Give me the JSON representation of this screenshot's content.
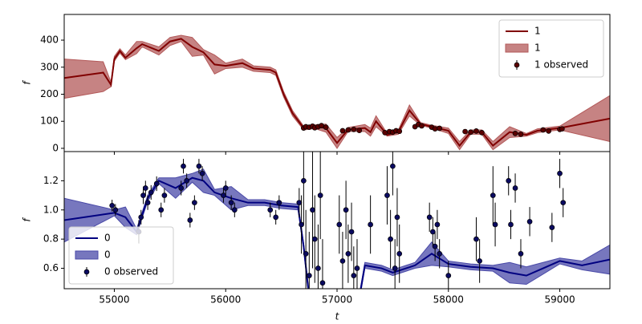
{
  "chart_data": [
    {
      "type": "line",
      "ylabel": "f",
      "legend": "upper right",
      "xlim": [
        54550,
        59450
      ],
      "ylim": [
        -12,
        495
      ],
      "yticks": [
        0,
        100,
        200,
        300,
        400
      ],
      "series": [
        {
          "name": "1",
          "kind": "line",
          "color": "#800000",
          "x": [
            54550,
            54900,
            54970,
            55000,
            55050,
            55100,
            55200,
            55250,
            55400,
            55500,
            55600,
            55700,
            55800,
            55900,
            56000,
            56150,
            56250,
            56400,
            56450,
            56520,
            56600,
            56700,
            56800,
            56900,
            57000,
            57100,
            57250,
            57300,
            57350,
            57450,
            57550,
            57650,
            57750,
            57850,
            58000,
            58100,
            58200,
            58300,
            58400,
            58550,
            58700,
            58800,
            59000,
            59450
          ],
          "values": [
            260,
            280,
            235,
            330,
            360,
            335,
            370,
            385,
            360,
            395,
            405,
            375,
            355,
            310,
            305,
            315,
            295,
            290,
            280,
            200,
            130,
            75,
            80,
            75,
            20,
            70,
            75,
            60,
            100,
            50,
            60,
            140,
            90,
            80,
            65,
            10,
            60,
            60,
            10,
            60,
            50,
            65,
            75,
            110
          ]
        },
        {
          "name": "1",
          "kind": "band",
          "color": "#b35959",
          "x": [
            54550,
            54900,
            54970,
            55000,
            55050,
            55100,
            55200,
            55250,
            55400,
            55500,
            55600,
            55700,
            55800,
            55900,
            56000,
            56150,
            56250,
            56400,
            56450,
            56520,
            56600,
            56700,
            56800,
            56900,
            57000,
            57100,
            57250,
            57300,
            57350,
            57450,
            57550,
            57650,
            57750,
            57850,
            58000,
            58100,
            58200,
            58300,
            58400,
            58550,
            58700,
            58800,
            59000,
            59450
          ],
          "lower": [
            185,
            210,
            228,
            322,
            352,
            328,
            350,
            375,
            345,
            380,
            395,
            340,
            345,
            275,
            295,
            300,
            285,
            280,
            270,
            190,
            120,
            68,
            73,
            60,
            0,
            63,
            62,
            45,
            80,
            45,
            52,
            120,
            85,
            75,
            55,
            -5,
            52,
            52,
            -5,
            40,
            45,
            58,
            68,
            25
          ],
          "upper": [
            330,
            320,
            245,
            340,
            368,
            345,
            395,
            395,
            375,
            410,
            418,
            410,
            365,
            345,
            315,
            330,
            305,
            300,
            290,
            210,
            140,
            82,
            87,
            90,
            40,
            77,
            88,
            75,
            120,
            55,
            68,
            160,
            95,
            85,
            75,
            25,
            68,
            68,
            25,
            80,
            55,
            72,
            82,
            195
          ]
        },
        {
          "name": "1 observed",
          "kind": "errorbar",
          "color": "#5a0000",
          "x": [
            56700,
            56720,
            56750,
            56780,
            56800,
            56830,
            56860,
            56900,
            57050,
            57100,
            57150,
            57200,
            57430,
            57470,
            57500,
            57530,
            57560,
            57700,
            57730,
            57760,
            57850,
            57880,
            57920,
            58150,
            58200,
            58250,
            58300,
            58600,
            58650,
            58850,
            58900,
            59000,
            59020
          ],
          "values": [
            75,
            80,
            78,
            82,
            76,
            80,
            84,
            78,
            65,
            68,
            70,
            66,
            58,
            62,
            60,
            65,
            63,
            80,
            88,
            83,
            78,
            72,
            74,
            62,
            60,
            64,
            58,
            55,
            52,
            68,
            64,
            70,
            72
          ],
          "errors": [
            8,
            8,
            8,
            8,
            8,
            8,
            8,
            8,
            6,
            6,
            6,
            6,
            6,
            6,
            6,
            6,
            6,
            6,
            6,
            6,
            6,
            6,
            6,
            6,
            6,
            6,
            6,
            6,
            6,
            6,
            6,
            6,
            6
          ]
        }
      ]
    },
    {
      "type": "line",
      "ylabel": "f",
      "xlabel": "t",
      "legend": "lower left",
      "xlim": [
        54550,
        59450
      ],
      "ylim": [
        0.46,
        1.4
      ],
      "xticks": [
        55000,
        56000,
        57000,
        58000,
        59000
      ],
      "yticks": [
        0.6,
        0.8,
        {
          "value": 1,
          "label": "1.0"
        },
        1.2
      ],
      "series": [
        {
          "name": "0",
          "kind": "line",
          "color": "#000080",
          "x": [
            54550,
            55000,
            55100,
            55200,
            55300,
            55400,
            55550,
            55700,
            55800,
            55900,
            56050,
            56200,
            56350,
            56500,
            56650,
            56700,
            56750,
            57200,
            57250,
            57400,
            57500,
            57700,
            57850,
            58000,
            58200,
            58400,
            58550,
            58700,
            58850,
            59000,
            59200,
            59450
          ],
          "values": [
            0.93,
            0.98,
            0.95,
            0.85,
            1.08,
            1.2,
            1.15,
            1.22,
            1.2,
            1.12,
            1.08,
            1.05,
            1.05,
            1.03,
            1.02,
            0.75,
            0.4,
            0.4,
            0.62,
            0.6,
            0.57,
            0.62,
            0.7,
            0.63,
            0.61,
            0.6,
            0.57,
            0.55,
            0.6,
            0.65,
            0.62,
            0.66
          ]
        },
        {
          "name": "0",
          "kind": "band",
          "color": "#4a4aa8",
          "x": [
            54550,
            55000,
            55100,
            55200,
            55300,
            55400,
            55550,
            55700,
            55800,
            55900,
            56050,
            56200,
            56350,
            56500,
            56650,
            56700,
            56750,
            57200,
            57250,
            57400,
            57500,
            57700,
            57850,
            58000,
            58200,
            58400,
            58550,
            58700,
            58850,
            59000,
            59200,
            59450
          ],
          "lower": [
            0.78,
            0.96,
            0.88,
            0.83,
            1.06,
            1.18,
            1.08,
            1.19,
            1.12,
            1.1,
            1.0,
            1.03,
            1.03,
            1.01,
            1.0,
            0.73,
            0.38,
            0.38,
            0.6,
            0.58,
            0.55,
            0.6,
            0.62,
            0.61,
            0.59,
            0.58,
            0.5,
            0.49,
            0.56,
            0.63,
            0.59,
            0.56
          ]
        },
        {
          "name": "0 observed",
          "kind": "errorbar",
          "color": "#0a0a60",
          "x": [
            54980,
            55010,
            55220,
            55240,
            55260,
            55280,
            55300,
            55330,
            55380,
            55420,
            55450,
            55600,
            55620,
            55650,
            55680,
            55720,
            55760,
            55790,
            55980,
            56000,
            56050,
            56080,
            56400,
            56450,
            56480,
            56660,
            56680,
            56700,
            56720,
            56750,
            56780,
            56800,
            56830,
            56850,
            56870,
            57020,
            57050,
            57080,
            57100,
            57130,
            57150,
            57180,
            57300,
            57450,
            57480,
            57500,
            57520,
            57540,
            57560,
            57830,
            57860,
            57880,
            57900,
            57920,
            58000,
            58250,
            58280,
            58400,
            58420,
            58540,
            58560,
            58600,
            58650,
            58730,
            58930,
            59000,
            59030
          ],
          "values": [
            1.03,
            1.0,
            0.85,
            0.95,
            1.1,
            1.15,
            1.05,
            1.12,
            1.18,
            1.0,
            1.1,
            1.15,
            1.3,
            1.2,
            0.93,
            1.05,
            1.3,
            1.25,
            1.1,
            1.15,
            1.05,
            1.0,
            1.0,
            0.95,
            1.05,
            1.05,
            0.9,
            1.2,
            0.7,
            0.55,
            1.0,
            0.8,
            0.6,
            1.1,
            0.5,
            0.9,
            0.65,
            1.0,
            0.7,
            0.85,
            0.55,
            0.6,
            0.9,
            1.1,
            0.8,
            1.3,
            0.6,
            0.95,
            0.7,
            0.95,
            0.85,
            0.75,
            0.9,
            0.7,
            0.55,
            0.8,
            0.65,
            1.1,
            0.9,
            1.2,
            0.9,
            1.15,
            0.7,
            0.92,
            0.88,
            1.25,
            1.05
          ],
          "errors": [
            0.04,
            0.04,
            0.08,
            0.05,
            0.06,
            0.05,
            0.05,
            0.05,
            0.05,
            0.05,
            0.05,
            0.05,
            0.05,
            0.05,
            0.05,
            0.05,
            0.05,
            0.05,
            0.05,
            0.05,
            0.05,
            0.05,
            0.05,
            0.05,
            0.05,
            0.1,
            0.2,
            0.3,
            0.3,
            0.3,
            0.4,
            0.3,
            0.3,
            0.3,
            0.3,
            0.2,
            0.2,
            0.2,
            0.2,
            0.2,
            0.2,
            0.2,
            0.2,
            0.2,
            0.2,
            0.2,
            0.2,
            0.2,
            0.2,
            0.1,
            0.1,
            0.1,
            0.1,
            0.1,
            0.1,
            0.15,
            0.15,
            0.2,
            0.15,
            0.1,
            0.1,
            0.1,
            0.1,
            0.1,
            0.1,
            0.1,
            0.1
          ]
        }
      ]
    }
  ]
}
